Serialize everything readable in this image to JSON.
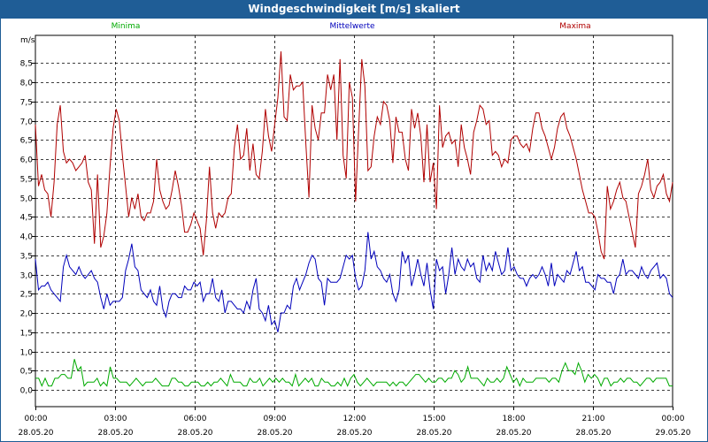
{
  "window": {
    "title": "Windgeschwindigkeit [m/s] skaliert"
  },
  "chart_data": {
    "type": "line",
    "unit_label": "m/s",
    "ylim": [
      -0.3,
      9.2
    ],
    "yticks": [
      0.0,
      0.5,
      1.0,
      1.5,
      2.0,
      2.5,
      3.0,
      3.5,
      4.0,
      4.5,
      5.0,
      5.5,
      6.0,
      6.5,
      7.0,
      7.5,
      8.0,
      8.5
    ],
    "ytick_labels": [
      "0,0",
      "0,5",
      "1,0",
      "1,5",
      "2,0",
      "2,5",
      "3,0",
      "3,5",
      "4,0",
      "4,5",
      "5,0",
      "5,5",
      "6,0",
      "6,5",
      "7,0",
      "7,5",
      "8,0",
      "8,5"
    ],
    "x_range_hours": [
      0,
      24
    ],
    "xticks": [
      {
        "h": 0,
        "time": "00:00",
        "date": "28.05.20"
      },
      {
        "h": 3,
        "time": "03:00",
        "date": "28.05.20"
      },
      {
        "h": 6,
        "time": "06:00",
        "date": "28.05.20"
      },
      {
        "h": 9,
        "time": "09:00",
        "date": "28.05.20"
      },
      {
        "h": 12,
        "time": "12:00",
        "date": "28.05.20"
      },
      {
        "h": 15,
        "time": "15:00",
        "date": "28.05.20"
      },
      {
        "h": 18,
        "time": "18:00",
        "date": "28.05.20"
      },
      {
        "h": 21,
        "time": "21:00",
        "date": "28.05.20"
      },
      {
        "h": 24,
        "time": "00:00",
        "date": "29.05.20"
      }
    ],
    "grid": true,
    "legend_placement": "top",
    "series": [
      {
        "name": "Minima",
        "color": "#00aa00",
        "values": [
          0.3,
          0.3,
          0.1,
          0.3,
          0.1,
          0.1,
          0.3,
          0.3,
          0.4,
          0.4,
          0.3,
          0.3,
          0.8,
          0.5,
          0.6,
          0.1,
          0.2,
          0.2,
          0.2,
          0.3,
          0.1,
          0.2,
          0.1,
          0.6,
          0.3,
          0.3,
          0.2,
          0.2,
          0.2,
          0.1,
          0.2,
          0.3,
          0.2,
          0.1,
          0.2,
          0.2,
          0.2,
          0.3,
          0.2,
          0.1,
          0.1,
          0.1,
          0.3,
          0.3,
          0.2,
          0.2,
          0.1,
          0.1,
          0.2,
          0.2,
          0.2,
          0.1,
          0.1,
          0.2,
          0.1,
          0.2,
          0.2,
          0.3,
          0.2,
          0.1,
          0.4,
          0.2,
          0.2,
          0.2,
          0.1,
          0.1,
          0.3,
          0.2,
          0.2,
          0.3,
          0.1,
          0.2,
          0.3,
          0.2,
          0.3,
          0.2,
          0.3,
          0.2,
          0.2,
          0.1,
          0.4,
          0.1,
          0.2,
          0.3,
          0.2,
          0.3,
          0.1,
          0.1,
          0.3,
          0.2,
          0.2,
          0.1,
          0.1,
          0.2,
          0.1,
          0.3,
          0.1,
          0.3,
          0.4,
          0.2,
          0.1,
          0.2,
          0.3,
          0.2,
          0.1,
          0.2,
          0.2,
          0.2,
          0.2,
          0.1,
          0.2,
          0.1,
          0.2,
          0.2,
          0.1,
          0.2,
          0.3,
          0.4,
          0.4,
          0.3,
          0.2,
          0.3,
          0.2,
          0.2,
          0.3,
          0.3,
          0.2,
          0.3,
          0.3,
          0.5,
          0.4,
          0.2,
          0.3,
          0.6,
          0.3,
          0.3,
          0.3,
          0.2,
          0.1,
          0.3,
          0.2,
          0.2,
          0.3,
          0.2,
          0.3,
          0.6,
          0.4,
          0.2,
          0.3,
          0.1,
          0.3,
          0.2,
          0.2,
          0.2,
          0.3,
          0.3,
          0.3,
          0.3,
          0.2,
          0.3,
          0.3,
          0.2,
          0.5,
          0.7,
          0.5,
          0.5,
          0.4,
          0.7,
          0.5,
          0.2,
          0.4,
          0.3,
          0.4,
          0.3,
          0.1,
          0.3,
          0.3,
          0.1,
          0.2,
          0.2,
          0.3,
          0.2,
          0.3,
          0.3,
          0.2,
          0.2,
          0.1,
          0.2,
          0.3,
          0.3,
          0.2,
          0.3,
          0.3,
          0.3,
          0.3,
          0.1,
          0.1
        ]
      },
      {
        "name": "Mittelwerte",
        "color": "#0000bb",
        "values": [
          3.4,
          2.6,
          2.7,
          2.7,
          2.8,
          2.6,
          2.5,
          2.4,
          2.3,
          3.2,
          3.5,
          3.2,
          3.1,
          3.0,
          3.2,
          3.0,
          2.9,
          3.0,
          3.1,
          2.9,
          2.8,
          2.4,
          2.1,
          2.5,
          2.2,
          2.3,
          2.3,
          2.3,
          2.4,
          3.1,
          3.4,
          3.8,
          3.2,
          3.1,
          2.6,
          2.5,
          2.4,
          2.6,
          2.3,
          2.2,
          2.7,
          2.1,
          1.9,
          2.3,
          2.5,
          2.5,
          2.4,
          2.4,
          2.7,
          2.6,
          2.6,
          2.8,
          2.7,
          2.8,
          2.3,
          2.5,
          2.5,
          2.9,
          2.4,
          2.3,
          2.6,
          2.0,
          2.3,
          2.3,
          2.2,
          2.1,
          2.1,
          2.0,
          2.3,
          2.1,
          2.6,
          2.9,
          2.1,
          2.0,
          1.8,
          2.2,
          1.7,
          1.8,
          1.5,
          2.0,
          2.0,
          2.2,
          2.1,
          2.7,
          2.9,
          2.6,
          2.8,
          3.0,
          3.3,
          3.5,
          3.4,
          2.9,
          2.8,
          2.2,
          2.9,
          2.8,
          2.8,
          2.8,
          2.9,
          3.2,
          3.5,
          3.4,
          3.5,
          2.9,
          2.6,
          2.7,
          3.1,
          4.1,
          3.4,
          3.6,
          3.2,
          3.1,
          2.9,
          2.8,
          3.0,
          2.5,
          2.3,
          2.6,
          3.6,
          3.3,
          3.5,
          2.7,
          3.0,
          3.4,
          3.0,
          2.7,
          3.3,
          2.6,
          2.1,
          3.4,
          3.1,
          3.2,
          2.5,
          3.0,
          3.7,
          3.0,
          3.4,
          3.2,
          3.1,
          3.4,
          3.2,
          3.3,
          2.9,
          2.8,
          3.5,
          3.1,
          3.3,
          3.1,
          3.6,
          3.3,
          3.0,
          3.1,
          3.7,
          3.1,
          3.2,
          3.0,
          2.9,
          2.9,
          2.7,
          2.9,
          3.0,
          2.9,
          3.0,
          3.2,
          3.0,
          2.7,
          3.3,
          2.7,
          3.0,
          2.9,
          2.8,
          3.1,
          3.0,
          3.3,
          3.6,
          3.1,
          3.2,
          2.8,
          2.8,
          2.7,
          2.6,
          3.0,
          2.9,
          2.9,
          2.8,
          2.8,
          2.5,
          2.9,
          3.0,
          3.4,
          3.0,
          3.1,
          3.1,
          3.0,
          2.9,
          3.2,
          3.0,
          2.9,
          3.1,
          3.2,
          3.3,
          2.9,
          3.0,
          2.9,
          2.5,
          2.4
        ]
      },
      {
        "name": "Maxima",
        "color": "#b00000",
        "values": [
          6.9,
          5.3,
          5.6,
          5.2,
          5.1,
          4.5,
          5.4,
          6.9,
          7.4,
          6.2,
          5.9,
          6.0,
          5.9,
          5.7,
          5.8,
          5.9,
          6.1,
          5.4,
          5.2,
          3.8,
          5.6,
          3.7,
          4.0,
          4.6,
          5.8,
          6.8,
          7.3,
          7.0,
          6.1,
          5.3,
          4.5,
          5.0,
          4.7,
          5.1,
          4.5,
          4.4,
          4.6,
          4.6,
          4.9,
          6.0,
          5.2,
          4.9,
          4.7,
          4.8,
          5.2,
          5.7,
          5.3,
          4.8,
          4.1,
          4.1,
          4.3,
          4.6,
          4.4,
          4.2,
          3.5,
          4.4,
          5.8,
          4.6,
          4.2,
          4.6,
          4.5,
          4.6,
          5.0,
          5.1,
          6.3,
          6.9,
          6.0,
          6.1,
          6.8,
          5.7,
          6.4,
          5.6,
          5.5,
          6.2,
          7.3,
          6.6,
          6.2,
          6.9,
          7.6,
          8.8,
          7.1,
          7.0,
          8.2,
          7.8,
          7.9,
          7.9,
          8.0,
          6.4,
          5.0,
          7.4,
          6.8,
          6.5,
          7.2,
          7.2,
          8.2,
          7.8,
          8.2,
          6.5,
          8.6,
          6.1,
          5.5,
          8.0,
          7.6,
          4.9,
          6.8,
          8.6,
          7.9,
          5.7,
          5.8,
          6.6,
          7.1,
          6.9,
          7.5,
          7.4,
          7.0,
          5.9,
          7.1,
          6.7,
          6.7,
          6.0,
          5.7,
          7.3,
          6.8,
          7.2,
          6.6,
          5.4,
          6.9,
          5.4,
          5.9,
          4.7,
          7.4,
          6.3,
          6.6,
          6.7,
          6.4,
          6.5,
          5.8,
          6.9,
          6.3,
          6.0,
          5.6,
          6.7,
          7.0,
          7.4,
          7.3,
          6.9,
          7.0,
          6.1,
          6.2,
          6.1,
          5.8,
          6.0,
          5.9,
          6.5,
          6.6,
          6.6,
          6.4,
          6.3,
          6.4,
          6.2,
          6.8,
          7.2,
          7.2,
          6.8,
          6.6,
          6.3,
          6.0,
          6.3,
          6.8,
          7.1,
          7.2,
          6.8,
          6.6,
          6.3,
          6.0,
          5.6,
          5.2,
          4.9,
          4.6,
          4.6,
          4.5,
          4.1,
          3.6,
          3.4,
          5.3,
          4.7,
          4.9,
          5.2,
          5.4,
          5.0,
          4.9,
          4.5,
          4.1,
          3.7,
          5.1,
          5.3,
          5.6,
          6.0,
          5.2,
          5.0,
          5.3,
          5.4,
          5.6,
          5.1,
          4.9,
          5.4
        ]
      }
    ]
  }
}
